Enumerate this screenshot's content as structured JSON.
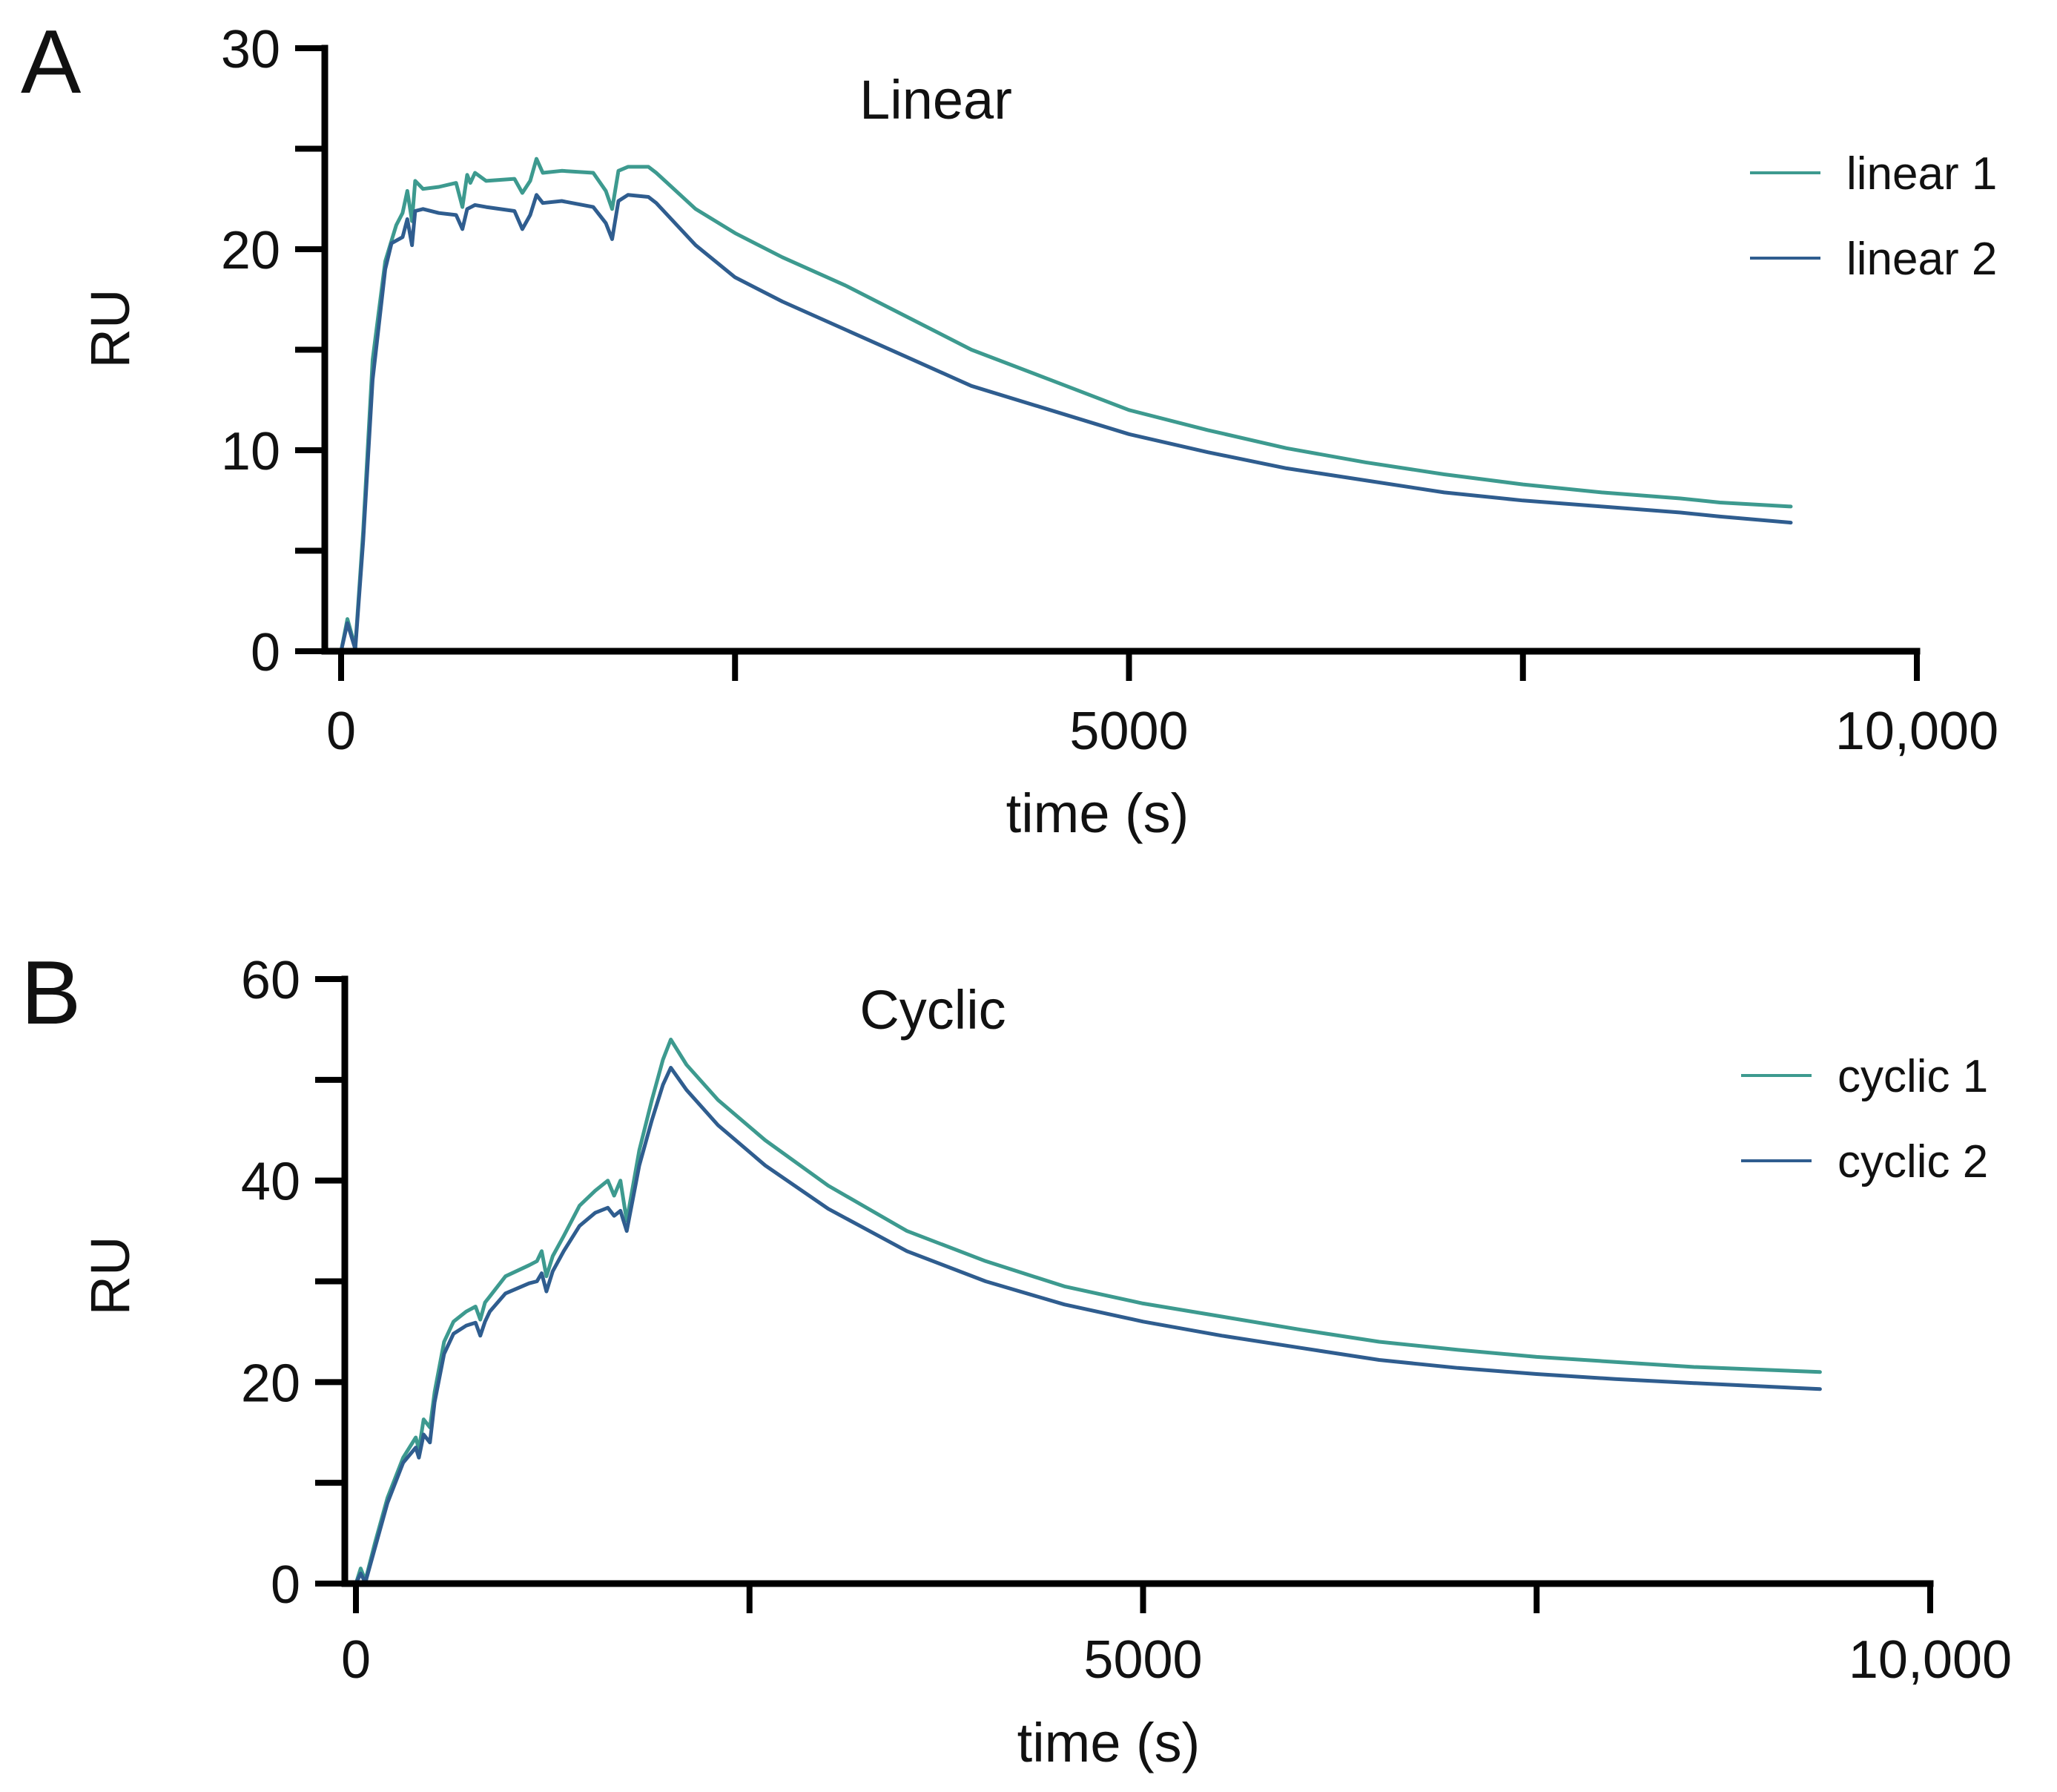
{
  "chart_data": [
    {
      "panel_label": "A",
      "type": "line",
      "title": "Linear",
      "xlabel": "time (s)",
      "ylabel": "RU",
      "xlim": [
        0,
        10000
      ],
      "ylim": [
        0,
        30
      ],
      "x_ticks": [
        0,
        2500,
        5000,
        7500,
        10000
      ],
      "x_tick_labels": [
        "0",
        "",
        "5000",
        "",
        "10,000"
      ],
      "y_ticks": [
        0,
        5,
        10,
        15,
        20,
        25,
        30
      ],
      "y_tick_labels": [
        "0",
        "",
        "10",
        "",
        "20",
        "",
        "30"
      ],
      "legend_position": "top-right",
      "series": [
        {
          "name": "linear 1",
          "color": "#3d9a8f",
          "points": [
            [
              0,
              0
            ],
            [
              40,
              1.6
            ],
            [
              90,
              0.2
            ],
            [
              140,
              6.0
            ],
            [
              200,
              14.5
            ],
            [
              280,
              19.4
            ],
            [
              350,
              21.2
            ],
            [
              390,
              21.8
            ],
            [
              420,
              22.9
            ],
            [
              450,
              21.4
            ],
            [
              470,
              23.4
            ],
            [
              520,
              23.0
            ],
            [
              620,
              23.1
            ],
            [
              730,
              23.3
            ],
            [
              770,
              22.1
            ],
            [
              800,
              23.7
            ],
            [
              820,
              23.3
            ],
            [
              850,
              23.8
            ],
            [
              920,
              23.4
            ],
            [
              1100,
              23.5
            ],
            [
              1150,
              22.8
            ],
            [
              1200,
              23.4
            ],
            [
              1240,
              24.5
            ],
            [
              1280,
              23.8
            ],
            [
              1400,
              23.9
            ],
            [
              1600,
              23.8
            ],
            [
              1680,
              22.9
            ],
            [
              1720,
              22.0
            ],
            [
              1760,
              23.9
            ],
            [
              1820,
              24.1
            ],
            [
              1950,
              24.1
            ],
            [
              2000,
              23.8
            ],
            [
              2250,
              22.0
            ],
            [
              2500,
              20.8
            ],
            [
              2800,
              19.6
            ],
            [
              3200,
              18.2
            ],
            [
              3600,
              16.6
            ],
            [
              4000,
              15.0
            ],
            [
              4500,
              13.5
            ],
            [
              5000,
              12.0
            ],
            [
              5500,
              11.0
            ],
            [
              6000,
              10.1
            ],
            [
              6500,
              9.4
            ],
            [
              7000,
              8.8
            ],
            [
              7500,
              8.3
            ],
            [
              8000,
              7.9
            ],
            [
              8500,
              7.6
            ],
            [
              8750,
              7.4
            ],
            [
              9200,
              7.2
            ]
          ]
        },
        {
          "name": "linear 2",
          "color": "#2f5d8f",
          "points": [
            [
              0,
              0
            ],
            [
              40,
              1.4
            ],
            [
              90,
              0.1
            ],
            [
              140,
              5.5
            ],
            [
              200,
              13.5
            ],
            [
              280,
              19.0
            ],
            [
              320,
              20.3
            ],
            [
              390,
              20.6
            ],
            [
              420,
              21.5
            ],
            [
              450,
              20.2
            ],
            [
              470,
              21.9
            ],
            [
              520,
              22.0
            ],
            [
              620,
              21.8
            ],
            [
              730,
              21.7
            ],
            [
              770,
              21.0
            ],
            [
              800,
              22.0
            ],
            [
              850,
              22.2
            ],
            [
              920,
              22.1
            ],
            [
              1100,
              21.9
            ],
            [
              1150,
              21.0
            ],
            [
              1200,
              21.7
            ],
            [
              1240,
              22.7
            ],
            [
              1280,
              22.3
            ],
            [
              1400,
              22.4
            ],
            [
              1600,
              22.1
            ],
            [
              1680,
              21.3
            ],
            [
              1720,
              20.5
            ],
            [
              1760,
              22.4
            ],
            [
              1820,
              22.7
            ],
            [
              1950,
              22.6
            ],
            [
              2000,
              22.3
            ],
            [
              2250,
              20.2
            ],
            [
              2500,
              18.6
            ],
            [
              2800,
              17.4
            ],
            [
              3200,
              16.0
            ],
            [
              3600,
              14.6
            ],
            [
              4000,
              13.2
            ],
            [
              4500,
              12.0
            ],
            [
              5000,
              10.8
            ],
            [
              5500,
              9.9
            ],
            [
              6000,
              9.1
            ],
            [
              6500,
              8.5
            ],
            [
              7000,
              7.9
            ],
            [
              7500,
              7.5
            ],
            [
              8000,
              7.2
            ],
            [
              8500,
              6.9
            ],
            [
              8750,
              6.7
            ],
            [
              9200,
              6.4
            ]
          ]
        }
      ]
    },
    {
      "panel_label": "B",
      "type": "line",
      "title": "Cyclic",
      "xlabel": "time (s)",
      "ylabel": "RU",
      "xlim": [
        0,
        10000
      ],
      "ylim": [
        0,
        60
      ],
      "x_ticks": [
        0,
        2500,
        5000,
        7500,
        10000
      ],
      "x_tick_labels": [
        "0",
        "",
        "5000",
        "",
        "10,000"
      ],
      "y_ticks": [
        0,
        10,
        20,
        30,
        40,
        50,
        60
      ],
      "y_tick_labels": [
        "0",
        "",
        "20",
        "",
        "40",
        "",
        "60"
      ],
      "legend_position": "top-right",
      "series": [
        {
          "name": "cyclic 1",
          "color": "#3d9a8f",
          "points": [
            [
              0,
              0
            ],
            [
              30,
              1.5
            ],
            [
              60,
              0.3
            ],
            [
              120,
              4.0
            ],
            [
              200,
              8.5
            ],
            [
              300,
              12.5
            ],
            [
              380,
              14.5
            ],
            [
              400,
              13.3
            ],
            [
              430,
              16.3
            ],
            [
              470,
              15.5
            ],
            [
              500,
              19.0
            ],
            [
              560,
              24.0
            ],
            [
              620,
              26.0
            ],
            [
              700,
              27.0
            ],
            [
              760,
              27.5
            ],
            [
              790,
              26.2
            ],
            [
              820,
              27.9
            ],
            [
              850,
              28.5
            ],
            [
              950,
              30.5
            ],
            [
              1100,
              31.6
            ],
            [
              1150,
              32.0
            ],
            [
              1180,
              33.0
            ],
            [
              1210,
              30.5
            ],
            [
              1250,
              32.5
            ],
            [
              1320,
              34.5
            ],
            [
              1420,
              37.5
            ],
            [
              1520,
              39.0
            ],
            [
              1600,
              40.0
            ],
            [
              1640,
              38.5
            ],
            [
              1680,
              40.0
            ],
            [
              1700,
              38.0
            ],
            [
              1720,
              36.0
            ],
            [
              1800,
              43.0
            ],
            [
              1880,
              48.0
            ],
            [
              1950,
              52.0
            ],
            [
              2000,
              54.0
            ],
            [
              2100,
              51.5
            ],
            [
              2300,
              48.0
            ],
            [
              2600,
              44.0
            ],
            [
              3000,
              39.5
            ],
            [
              3500,
              35.0
            ],
            [
              4000,
              32.0
            ],
            [
              4500,
              29.5
            ],
            [
              5000,
              27.8
            ],
            [
              5500,
              26.5
            ],
            [
              6000,
              25.2
            ],
            [
              6500,
              24.0
            ],
            [
              7000,
              23.2
            ],
            [
              7500,
              22.5
            ],
            [
              8000,
              22.0
            ],
            [
              8500,
              21.5
            ],
            [
              9300,
              21.0
            ]
          ]
        },
        {
          "name": "cyclic 2",
          "color": "#2f5d8f",
          "points": [
            [
              0,
              0
            ],
            [
              30,
              1.0
            ],
            [
              60,
              0.1
            ],
            [
              120,
              3.5
            ],
            [
              200,
              8.0
            ],
            [
              300,
              12.0
            ],
            [
              380,
              13.5
            ],
            [
              400,
              12.5
            ],
            [
              430,
              14.8
            ],
            [
              470,
              14.0
            ],
            [
              500,
              18.0
            ],
            [
              560,
              22.8
            ],
            [
              620,
              24.8
            ],
            [
              700,
              25.6
            ],
            [
              760,
              25.9
            ],
            [
              790,
              24.6
            ],
            [
              820,
              26.0
            ],
            [
              850,
              27.0
            ],
            [
              950,
              28.8
            ],
            [
              1100,
              29.8
            ],
            [
              1150,
              30.0
            ],
            [
              1180,
              30.8
            ],
            [
              1210,
              29.0
            ],
            [
              1250,
              31.0
            ],
            [
              1320,
              33.0
            ],
            [
              1420,
              35.5
            ],
            [
              1520,
              36.8
            ],
            [
              1600,
              37.3
            ],
            [
              1640,
              36.5
            ],
            [
              1680,
              37.0
            ],
            [
              1700,
              36.0
            ],
            [
              1720,
              35.0
            ],
            [
              1800,
              41.5
            ],
            [
              1880,
              46.0
            ],
            [
              1950,
              49.5
            ],
            [
              2000,
              51.2
            ],
            [
              2100,
              49.0
            ],
            [
              2300,
              45.5
            ],
            [
              2600,
              41.5
            ],
            [
              3000,
              37.2
            ],
            [
              3500,
              33.0
            ],
            [
              4000,
              30.0
            ],
            [
              4500,
              27.7
            ],
            [
              5000,
              26.0
            ],
            [
              5500,
              24.6
            ],
            [
              6000,
              23.4
            ],
            [
              6500,
              22.2
            ],
            [
              7000,
              21.4
            ],
            [
              7500,
              20.8
            ],
            [
              8000,
              20.3
            ],
            [
              8500,
              19.9
            ],
            [
              9300,
              19.3
            ]
          ]
        }
      ]
    }
  ]
}
